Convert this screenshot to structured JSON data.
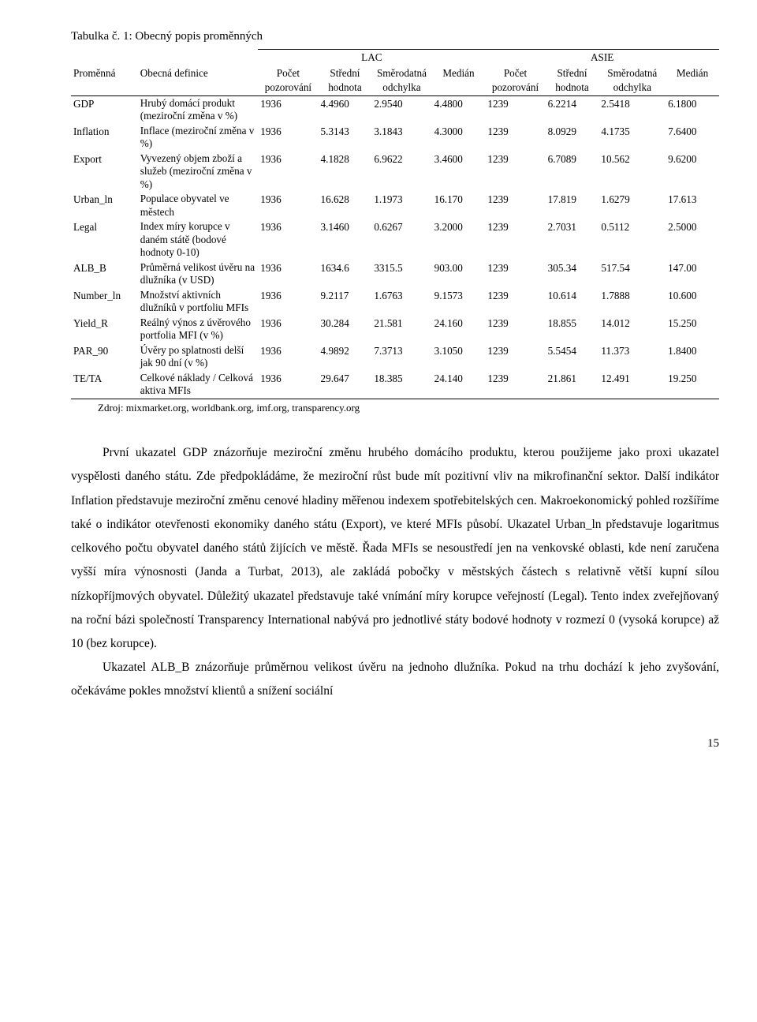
{
  "table_title": "Tabulka č. 1: Obecný popis proměnných",
  "header": {
    "group_lac": "LAC",
    "group_asie": "ASIE",
    "var": "Proměnná",
    "def": "Obecná definice",
    "count": "Počet pozorování",
    "mean": "Střední hodnota",
    "sd": "Směrodatná odchylka",
    "median": "Medián"
  },
  "rows": [
    {
      "var": "GDP",
      "def": "Hrubý domácí produkt (meziroční změna v %)",
      "lac": [
        "1936",
        "4.4960",
        "2.9540",
        "4.4800"
      ],
      "asie": [
        "1239",
        "6.2214",
        "2.5418",
        "6.1800"
      ]
    },
    {
      "var": "Inflation",
      "def": "Inflace (meziroční změna v %)",
      "lac": [
        "1936",
        "5.3143",
        "3.1843",
        "4.3000"
      ],
      "asie": [
        "1239",
        "8.0929",
        "4.1735",
        "7.6400"
      ]
    },
    {
      "var": "Export",
      "def": "Vyvezený objem zboží a služeb (meziroční změna v %)",
      "lac": [
        "1936",
        "4.1828",
        "6.9622",
        "3.4600"
      ],
      "asie": [
        "1239",
        "6.7089",
        "10.562",
        "9.6200"
      ]
    },
    {
      "var": "Urban_ln",
      "def": "Populace obyvatel ve městech",
      "lac": [
        "1936",
        "16.628",
        "1.1973",
        "16.170"
      ],
      "asie": [
        "1239",
        "17.819",
        "1.6279",
        "17.613"
      ]
    },
    {
      "var": "Legal",
      "def": "Index míry korupce v daném státě (bodové hodnoty 0-10)",
      "lac": [
        "1936",
        "3.1460",
        "0.6267",
        "3.2000"
      ],
      "asie": [
        "1239",
        "2.7031",
        "0.5112",
        "2.5000"
      ]
    },
    {
      "var": "ALB_B",
      "def": "Průměrná velikost úvěru na dlužníka (v USD)",
      "lac": [
        "1936",
        "1634.6",
        "3315.5",
        "903.00"
      ],
      "asie": [
        "1239",
        "305.34",
        "517.54",
        "147.00"
      ]
    },
    {
      "var": "Number_ln",
      "def": "Množství aktivních dlužníků v portfoliu MFIs",
      "lac": [
        "1936",
        "9.2117",
        "1.6763",
        "9.1573"
      ],
      "asie": [
        "1239",
        "10.614",
        "1.7888",
        "10.600"
      ]
    },
    {
      "var": "Yield_R",
      "def": "Reálný výnos z úvěrového portfolia MFI (v %)",
      "lac": [
        "1936",
        "30.284",
        "21.581",
        "24.160"
      ],
      "asie": [
        "1239",
        "18.855",
        "14.012",
        "15.250"
      ]
    },
    {
      "var": "PAR_90",
      "def": "Úvěry po splatnosti delší jak 90 dní (v %)",
      "lac": [
        "1936",
        "4.9892",
        "7.3713",
        "3.1050"
      ],
      "asie": [
        "1239",
        "5.5454",
        "11.373",
        "1.8400"
      ]
    },
    {
      "var": "TE/TA",
      "def": "Celkové náklady / Celková aktiva MFIs",
      "lac": [
        "1936",
        "29.647",
        "18.385",
        "24.140"
      ],
      "asie": [
        "1239",
        "21.861",
        "12.491",
        "19.250"
      ]
    }
  ],
  "source": "Zdroj: mixmarket.org, worldbank.org, imf.org, transparency.org",
  "paragraph1": "První ukazatel GDP znázorňuje meziroční změnu hrubého domácího produktu, kterou použijeme jako proxi ukazatel vyspělosti daného státu. Zde předpokládáme, že meziroční růst bude mít pozitivní vliv na mikrofinanční sektor. Další indikátor Inflation představuje meziroční změnu cenové hladiny měřenou indexem spotřebitelských cen. Makroekonomický pohled rozšíříme také o indikátor otevřenosti ekonomiky daného státu (Export), ve které MFIs působí. Ukazatel Urban_ln představuje logaritmus celkového počtu obyvatel daného států žijících ve městě. Řada MFIs se nesoustředí jen na venkovské oblasti, kde není zaručena vyšší míra výnosnosti (Janda a Turbat, 2013), ale zakládá pobočky v městských částech s relativně větší kupní sílou nízkopříjmových obyvatel. Důležitý ukazatel představuje také vnímání míry korupce veřejností (Legal). Tento index zveřejňovaný na roční bázi společností Transparency International nabývá pro jednotlivé státy bodové hodnoty v rozmezí 0 (vysoká korupce) až 10 (bez korupce).",
  "paragraph2": "Ukazatel ALB_B znázorňuje průměrnou velikost úvěru na jednoho dlužníka. Pokud na trhu dochází k jeho zvyšování, očekáváme pokles množství klientů a snížení sociální",
  "page_number": "15"
}
